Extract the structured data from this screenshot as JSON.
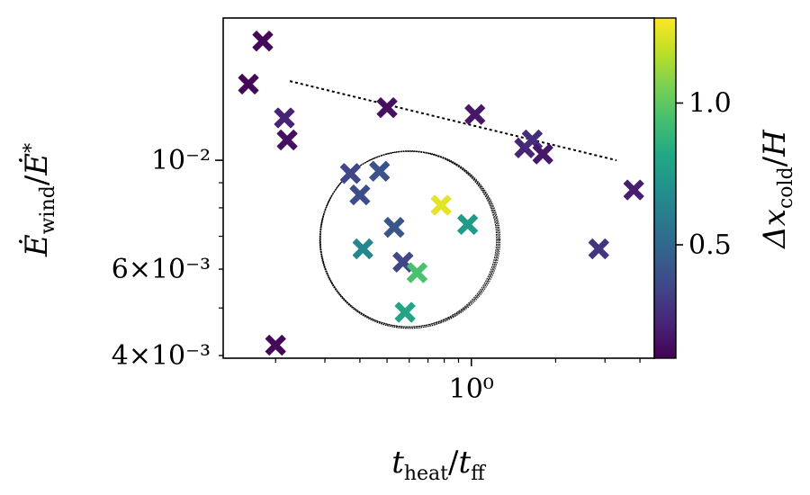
{
  "chart_data": {
    "type": "scatter",
    "xlabel": {
      "main": "t",
      "main_sub": "heat",
      "sep": "/",
      "den": "t",
      "den_sub": "ff"
    },
    "ylabel": {
      "main": "Ė",
      "main_sub": "wind",
      "sep": "/",
      "den": "Ė",
      "den_sub": "*"
    },
    "x_scale": "log",
    "y_scale": "log",
    "xlim": [
      0.13,
      4.5
    ],
    "ylim": [
      0.00395,
      0.0195
    ],
    "x_ticks": [
      {
        "value": 1,
        "label": "10⁰"
      }
    ],
    "y_ticks": [
      {
        "value": 0.01,
        "label": "10⁻²"
      },
      {
        "value": 0.006,
        "label": "6×10⁻³"
      },
      {
        "value": 0.004,
        "label": "4×10⁻³"
      }
    ],
    "colorbar": {
      "label": {
        "main": "Δx",
        "main_sub": "cold",
        "sep": "/",
        "den": "H"
      },
      "colormap": "viridis",
      "range": [
        0.1,
        1.3
      ],
      "ticks": [
        {
          "value": 0.5,
          "label": "0.5"
        },
        {
          "value": 1.0,
          "label": "1.0"
        }
      ]
    },
    "points": [
      {
        "x": 0.18,
        "y": 0.0175,
        "c": 0.12
      },
      {
        "x": 0.16,
        "y": 0.0143,
        "c": 0.12
      },
      {
        "x": 0.215,
        "y": 0.0122,
        "c": 0.22
      },
      {
        "x": 0.22,
        "y": 0.011,
        "c": 0.15
      },
      {
        "x": 0.5,
        "y": 0.0128,
        "c": 0.15
      },
      {
        "x": 1.03,
        "y": 0.0124,
        "c": 0.18
      },
      {
        "x": 1.55,
        "y": 0.0106,
        "c": 0.22
      },
      {
        "x": 1.65,
        "y": 0.011,
        "c": 0.25
      },
      {
        "x": 1.8,
        "y": 0.0103,
        "c": 0.18
      },
      {
        "x": 3.8,
        "y": 0.0087,
        "c": 0.2
      },
      {
        "x": 2.85,
        "y": 0.0066,
        "c": 0.28
      },
      {
        "x": 0.2,
        "y": 0.0042,
        "c": 0.12
      },
      {
        "x": 0.37,
        "y": 0.0094,
        "c": 0.35
      },
      {
        "x": 0.47,
        "y": 0.0095,
        "c": 0.4
      },
      {
        "x": 0.4,
        "y": 0.0085,
        "c": 0.38
      },
      {
        "x": 0.53,
        "y": 0.0073,
        "c": 0.42
      },
      {
        "x": 0.41,
        "y": 0.0066,
        "c": 0.65
      },
      {
        "x": 0.57,
        "y": 0.0062,
        "c": 0.35
      },
      {
        "x": 0.64,
        "y": 0.0059,
        "c": 0.95
      },
      {
        "x": 0.58,
        "y": 0.0049,
        "c": 0.8
      },
      {
        "x": 0.78,
        "y": 0.0081,
        "c": 1.25
      },
      {
        "x": 0.97,
        "y": 0.0074,
        "c": 0.75
      }
    ],
    "trend_line": {
      "style": "dotted",
      "from": [
        0.225,
        0.0145
      ],
      "to": [
        3.3,
        0.01
      ]
    },
    "annotation_circle": {
      "center": [
        0.6,
        0.0069
      ]
    },
    "grid": false,
    "legend": "none"
  }
}
